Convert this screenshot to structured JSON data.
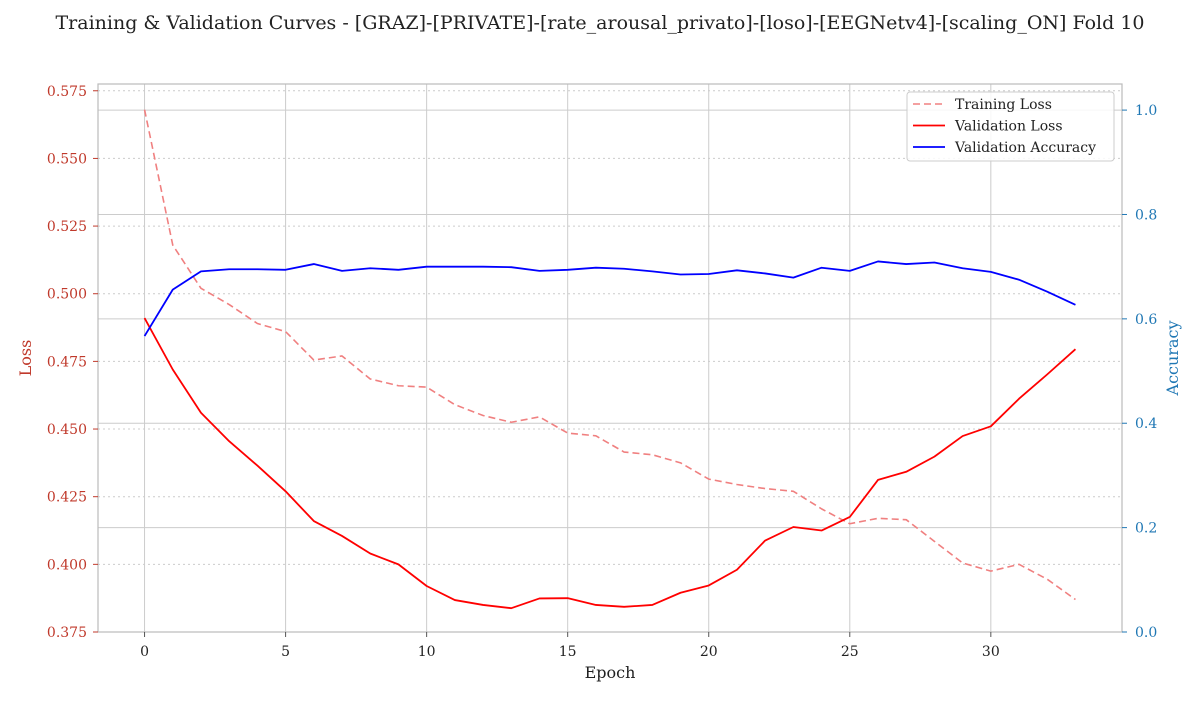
{
  "chart_data": {
    "type": "line",
    "title": "Training & Validation Curves - [GRAZ]-[PRIVATE]-[rate_arousal_privato]-[loso]-[EEGNetv4]-[scaling_ON] Fold 10",
    "xlabel": "Epoch",
    "ylabel_left": "Loss",
    "ylabel_right": "Accuracy",
    "xlim": [
      -1.65,
      34.65
    ],
    "ylim_left": [
      0.375,
      0.5775
    ],
    "ylim_right": [
      0.0,
      1.05
    ],
    "x_ticks": [
      0,
      5,
      10,
      15,
      20,
      25,
      30
    ],
    "y_ticks_left": [
      0.375,
      0.4,
      0.425,
      0.45,
      0.475,
      0.5,
      0.525,
      0.55,
      0.575
    ],
    "y_tick_labels_left": [
      "0.375",
      "0.400",
      "0.425",
      "0.450",
      "0.475",
      "0.500",
      "0.525",
      "0.550",
      "0.575"
    ],
    "y_ticks_right": [
      0.0,
      0.2,
      0.4,
      0.6,
      0.8,
      1.0
    ],
    "y_tick_labels_right": [
      "0.0",
      "0.2",
      "0.4",
      "0.6",
      "0.8",
      "1.0"
    ],
    "grid": true,
    "legend_position": "top-right",
    "colors": {
      "training_loss": "#f08080",
      "validation_loss": "#ff0000",
      "validation_accuracy": "#0000ff",
      "left_axis": "#c0392b",
      "right_axis": "#1f77b4",
      "grid": "#cccccc",
      "spine": "#bbbbbb"
    },
    "series": [
      {
        "name": "Training Loss",
        "axis": "left",
        "style": "dashed",
        "color": "#f08080",
        "x": [
          0,
          1,
          2,
          3,
          4,
          5,
          6,
          7,
          8,
          9,
          10,
          11,
          12,
          13,
          14,
          15,
          16,
          17,
          18,
          19,
          20,
          21,
          22,
          23,
          24,
          25,
          26,
          27,
          28,
          29,
          30,
          31,
          32,
          33
        ],
        "values": [
          0.568,
          0.518,
          0.502,
          0.496,
          0.489,
          0.486,
          0.4755,
          0.477,
          0.4685,
          0.466,
          0.4655,
          0.459,
          0.455,
          0.4525,
          0.4545,
          0.4485,
          0.4475,
          0.4415,
          0.4405,
          0.4375,
          0.4315,
          0.4295,
          0.428,
          0.427,
          0.4205,
          0.415,
          0.417,
          0.4165,
          0.4085,
          0.4005,
          0.3975,
          0.4,
          0.3945,
          0.387
        ]
      },
      {
        "name": "Validation Loss",
        "axis": "left",
        "style": "solid",
        "color": "#ff0000",
        "x": [
          0,
          1,
          2,
          3,
          4,
          5,
          6,
          7,
          8,
          9,
          10,
          11,
          12,
          13,
          14,
          15,
          16,
          17,
          18,
          19,
          20,
          21,
          22,
          23,
          24,
          25,
          26,
          27,
          28,
          29,
          30,
          31,
          32,
          33
        ],
        "values": [
          0.491,
          0.472,
          0.456,
          0.4455,
          0.4365,
          0.427,
          0.416,
          0.4105,
          0.404,
          0.4,
          0.392,
          0.3868,
          0.385,
          0.3838,
          0.3874,
          0.3875,
          0.385,
          0.3843,
          0.385,
          0.3895,
          0.3922,
          0.398,
          0.4088,
          0.4138,
          0.4125,
          0.4175,
          0.4312,
          0.4342,
          0.4398,
          0.4474,
          0.451,
          0.4612,
          0.4702,
          0.4795
        ]
      },
      {
        "name": "Validation Accuracy",
        "axis": "right",
        "style": "solid",
        "color": "#0000ff",
        "x": [
          0,
          1,
          2,
          3,
          4,
          5,
          6,
          7,
          8,
          9,
          10,
          11,
          12,
          13,
          14,
          15,
          16,
          17,
          18,
          19,
          20,
          21,
          22,
          23,
          24,
          25,
          26,
          27,
          28,
          29,
          30,
          31,
          32,
          33
        ],
        "values": [
          0.567,
          0.656,
          0.691,
          0.695,
          0.695,
          0.694,
          0.705,
          0.692,
          0.697,
          0.694,
          0.7,
          0.7,
          0.7,
          0.699,
          0.692,
          0.694,
          0.698,
          0.696,
          0.691,
          0.685,
          0.686,
          0.693,
          0.687,
          0.679,
          0.698,
          0.692,
          0.71,
          0.705,
          0.708,
          0.697,
          0.69,
          0.675,
          0.652,
          0.627
        ]
      }
    ]
  }
}
